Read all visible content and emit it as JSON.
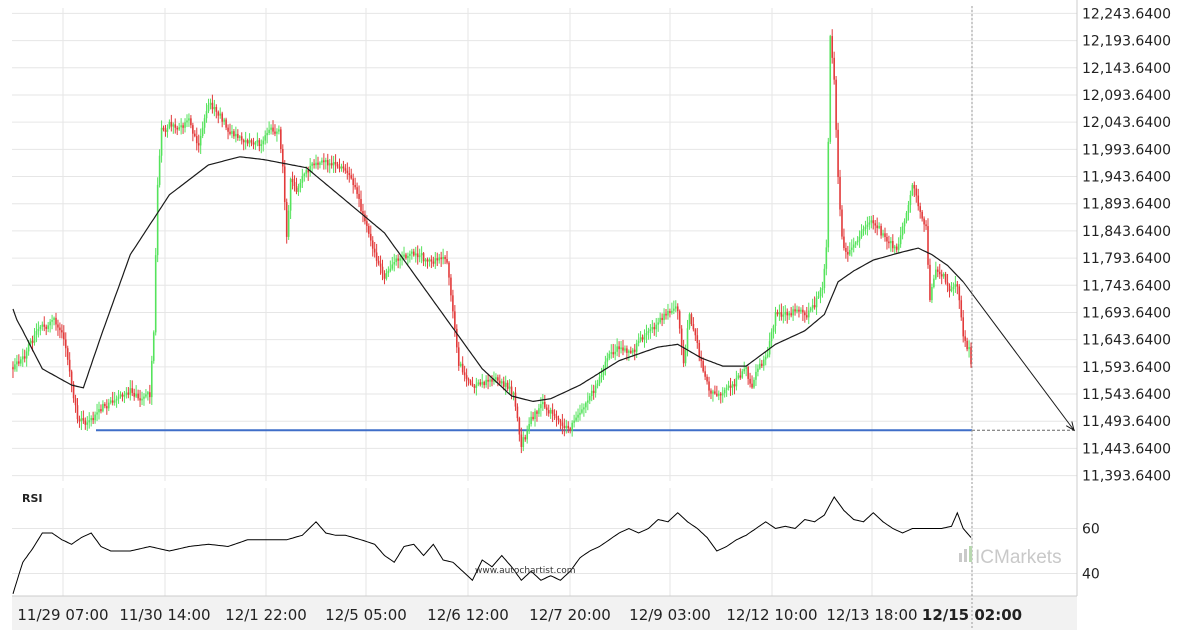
{
  "chart_data": [
    {
      "type": "candlestick",
      "price_axis": {
        "ticks": [
          "12,243.6400",
          "12,193.6400",
          "12,143.6400",
          "12,093.6400",
          "12,043.6400",
          "11,993.6400",
          "11,943.6400",
          "11,893.6400",
          "11,843.6400",
          "11,793.6400",
          "11,743.6400",
          "11,693.6400",
          "11,643.6400",
          "11,593.6400",
          "11,543.6400",
          "11,493.6400",
          "11,443.6400",
          "11,393.6400"
        ],
        "min": 11383.64,
        "max": 12253.64
      },
      "time_axis": {
        "labels": [
          "11/29 07:00",
          "11/30 14:00",
          "12/1 22:00",
          "12/5 05:00",
          "12/6 12:00",
          "12/7 20:00",
          "12/9 03:00",
          "12/12 10:00",
          "12/13 18:00",
          "12/15 02:00"
        ],
        "highlighted": "12/15 02:00"
      },
      "support_level": 11477,
      "projection_target": 11477,
      "moving_average_anchors": [
        [
          0,
          11700
        ],
        [
          2,
          11680
        ],
        [
          5,
          11660
        ],
        [
          15,
          11590
        ],
        [
          30,
          11560
        ],
        [
          36,
          11555
        ],
        [
          45,
          11650
        ],
        [
          60,
          11800
        ],
        [
          80,
          11910
        ],
        [
          100,
          11965
        ],
        [
          116,
          11980
        ],
        [
          128,
          11975
        ],
        [
          150,
          11960
        ],
        [
          170,
          11900
        ],
        [
          190,
          11840
        ],
        [
          200,
          11790
        ],
        [
          220,
          11690
        ],
        [
          240,
          11590
        ],
        [
          255,
          11540
        ],
        [
          266,
          11530
        ],
        [
          275,
          11535
        ],
        [
          290,
          11560
        ],
        [
          310,
          11605
        ],
        [
          330,
          11630
        ],
        [
          340,
          11635
        ],
        [
          352,
          11610
        ],
        [
          363,
          11595
        ],
        [
          375,
          11595
        ],
        [
          390,
          11635
        ],
        [
          405,
          11660
        ],
        [
          415,
          11690
        ],
        [
          422,
          11750
        ],
        [
          430,
          11770
        ],
        [
          440,
          11790
        ],
        [
          455,
          11805
        ],
        [
          463,
          11812
        ],
        [
          470,
          11800
        ],
        [
          478,
          11780
        ],
        [
          486,
          11750
        ]
      ],
      "price_path_anchors": [
        [
          0,
          11593
        ],
        [
          5,
          11610
        ],
        [
          12,
          11660
        ],
        [
          20,
          11680
        ],
        [
          25,
          11660
        ],
        [
          27,
          11630
        ],
        [
          30,
          11560
        ],
        [
          33,
          11500
        ],
        [
          38,
          11490
        ],
        [
          45,
          11520
        ],
        [
          52,
          11530
        ],
        [
          60,
          11550
        ],
        [
          66,
          11530
        ],
        [
          70,
          11540
        ],
        [
          72,
          11660
        ],
        [
          74,
          11930
        ],
        [
          76,
          12030
        ],
        [
          80,
          12040
        ],
        [
          85,
          12030
        ],
        [
          90,
          12045
        ],
        [
          95,
          12000
        ],
        [
          100,
          12080
        ],
        [
          105,
          12060
        ],
        [
          110,
          12030
        ],
        [
          118,
          12010
        ],
        [
          126,
          12000
        ],
        [
          132,
          12030
        ],
        [
          136,
          12030
        ],
        [
          138,
          11960
        ],
        [
          140,
          11830
        ],
        [
          142,
          11940
        ],
        [
          145,
          11920
        ],
        [
          150,
          11960
        ],
        [
          158,
          11970
        ],
        [
          166,
          11965
        ],
        [
          172,
          11950
        ],
        [
          176,
          11910
        ],
        [
          180,
          11860
        ],
        [
          185,
          11800
        ],
        [
          190,
          11760
        ],
        [
          196,
          11790
        ],
        [
          204,
          11800
        ],
        [
          212,
          11790
        ],
        [
          218,
          11795
        ],
        [
          222,
          11790
        ],
        [
          225,
          11700
        ],
        [
          228,
          11600
        ],
        [
          232,
          11570
        ],
        [
          238,
          11560
        ],
        [
          245,
          11570
        ],
        [
          252,
          11560
        ],
        [
          256,
          11540
        ],
        [
          260,
          11450
        ],
        [
          265,
          11500
        ],
        [
          270,
          11520
        ],
        [
          275,
          11510
        ],
        [
          280,
          11490
        ],
        [
          285,
          11480
        ],
        [
          290,
          11510
        ],
        [
          295,
          11540
        ],
        [
          300,
          11570
        ],
        [
          305,
          11620
        ],
        [
          310,
          11630
        ],
        [
          316,
          11620
        ],
        [
          322,
          11650
        ],
        [
          328,
          11670
        ],
        [
          334,
          11690
        ],
        [
          340,
          11700
        ],
        [
          343,
          11600
        ],
        [
          346,
          11690
        ],
        [
          349,
          11650
        ],
        [
          352,
          11600
        ],
        [
          356,
          11550
        ],
        [
          362,
          11540
        ],
        [
          368,
          11560
        ],
        [
          374,
          11590
        ],
        [
          378,
          11560
        ],
        [
          382,
          11600
        ],
        [
          386,
          11620
        ],
        [
          390,
          11690
        ],
        [
          396,
          11690
        ],
        [
          400,
          11700
        ],
        [
          405,
          11690
        ],
        [
          410,
          11710
        ],
        [
          414,
          11740
        ],
        [
          416,
          11810
        ],
        [
          418,
          12200
        ],
        [
          420,
          12120
        ],
        [
          422,
          11940
        ],
        [
          424,
          11830
        ],
        [
          426,
          11800
        ],
        [
          430,
          11820
        ],
        [
          436,
          11850
        ],
        [
          440,
          11860
        ],
        [
          446,
          11830
        ],
        [
          452,
          11810
        ],
        [
          456,
          11860
        ],
        [
          460,
          11930
        ],
        [
          464,
          11880
        ],
        [
          467,
          11850
        ],
        [
          469,
          11720
        ],
        [
          472,
          11770
        ],
        [
          476,
          11760
        ],
        [
          480,
          11730
        ],
        [
          483,
          11750
        ],
        [
          486,
          11650
        ],
        [
          489,
          11620
        ],
        [
          490,
          11600
        ]
      ],
      "rsi_indicator": {
        "label": "RSI",
        "ticks": [
          "60",
          "40"
        ],
        "min": 30,
        "max": 78,
        "series": [
          [
            0,
            31
          ],
          [
            5,
            45
          ],
          [
            10,
            51
          ],
          [
            15,
            58
          ],
          [
            20,
            58
          ],
          [
            25,
            55
          ],
          [
            30,
            53
          ],
          [
            35,
            56
          ],
          [
            40,
            58
          ],
          [
            45,
            52
          ],
          [
            50,
            50
          ],
          [
            60,
            50
          ],
          [
            70,
            52
          ],
          [
            80,
            50
          ],
          [
            90,
            52
          ],
          [
            100,
            53
          ],
          [
            110,
            52
          ],
          [
            120,
            55
          ],
          [
            130,
            55
          ],
          [
            140,
            55
          ],
          [
            148,
            57
          ],
          [
            155,
            63
          ],
          [
            160,
            58
          ],
          [
            165,
            57
          ],
          [
            170,
            57
          ],
          [
            178,
            55
          ],
          [
            185,
            53
          ],
          [
            190,
            48
          ],
          [
            195,
            45
          ],
          [
            200,
            52
          ],
          [
            205,
            53
          ],
          [
            210,
            48
          ],
          [
            215,
            53
          ],
          [
            220,
            46
          ],
          [
            225,
            45
          ],
          [
            230,
            41
          ],
          [
            235,
            37
          ],
          [
            240,
            46
          ],
          [
            245,
            43
          ],
          [
            250,
            48
          ],
          [
            255,
            43
          ],
          [
            260,
            37
          ],
          [
            265,
            41
          ],
          [
            270,
            37
          ],
          [
            275,
            39
          ],
          [
            280,
            37
          ],
          [
            285,
            41
          ],
          [
            290,
            47
          ],
          [
            295,
            50
          ],
          [
            300,
            52
          ],
          [
            305,
            55
          ],
          [
            310,
            58
          ],
          [
            315,
            60
          ],
          [
            320,
            58
          ],
          [
            325,
            60
          ],
          [
            330,
            64
          ],
          [
            335,
            63
          ],
          [
            340,
            67
          ],
          [
            345,
            63
          ],
          [
            350,
            60
          ],
          [
            355,
            56
          ],
          [
            360,
            50
          ],
          [
            365,
            52
          ],
          [
            370,
            55
          ],
          [
            375,
            57
          ],
          [
            380,
            60
          ],
          [
            385,
            63
          ],
          [
            390,
            60
          ],
          [
            395,
            61
          ],
          [
            400,
            60
          ],
          [
            405,
            64
          ],
          [
            410,
            63
          ],
          [
            415,
            66
          ],
          [
            420,
            74
          ],
          [
            425,
            68
          ],
          [
            430,
            64
          ],
          [
            435,
            63
          ],
          [
            440,
            67
          ],
          [
            445,
            63
          ],
          [
            450,
            60
          ],
          [
            455,
            58
          ],
          [
            460,
            60
          ],
          [
            465,
            60
          ],
          [
            470,
            60
          ],
          [
            475,
            60
          ],
          [
            480,
            61
          ],
          [
            483,
            67
          ],
          [
            486,
            60
          ],
          [
            490,
            56
          ]
        ]
      },
      "watermark": {
        "brand_prefix": "IC",
        "brand_suffix": "Markets",
        "url": "www.autochartist.com"
      }
    }
  ],
  "colors": {
    "bull": "#55e35c",
    "bear": "#e23a3a",
    "support": "#3f6ec8",
    "moving_average": "#1a1a1a",
    "projection": "#1a1a1a",
    "grid": "#e6e6e6",
    "rsi_line": "#000000",
    "brand": "#c9c9c9"
  }
}
